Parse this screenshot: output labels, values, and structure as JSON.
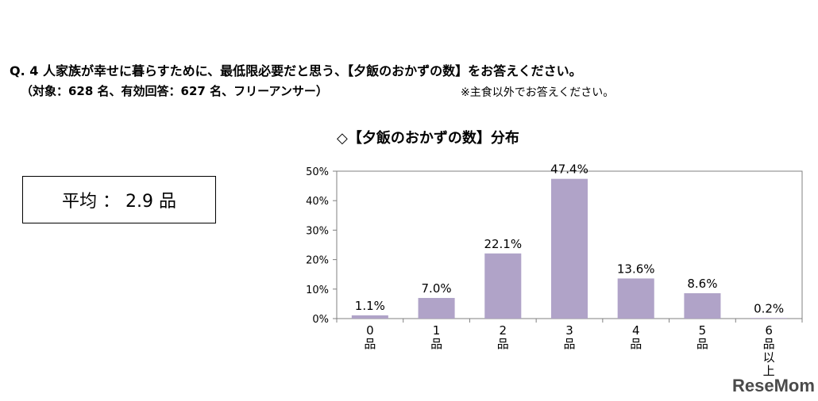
{
  "question": {
    "line1": "Q. 4 人家族が幸せに暮らすために、最低限必要だと思う、【夕飯のおかずの数】をお答えください。",
    "line2": "（対象：628 名、有効回答：627 名、フリーアンサー）",
    "note": "※主食以外でお答えください。"
  },
  "average": {
    "text": "平均 ： 2.9 品"
  },
  "watermark": "ReseMom",
  "colors": {
    "bar": "#b0a3c8",
    "axis": "#808080"
  },
  "chart_data": {
    "type": "bar",
    "title": "◇【夕飯のおかずの数】分布",
    "categories": [
      "0品",
      "1品",
      "2品",
      "3品",
      "4品",
      "5品",
      "6品以上"
    ],
    "values": [
      1.1,
      7.0,
      22.1,
      47.4,
      13.6,
      8.6,
      0.2
    ],
    "value_labels": [
      "1.1%",
      "7.0%",
      "22.1%",
      "47.4%",
      "13.6%",
      "8.6%",
      "0.2%"
    ],
    "yticks": [
      "0%",
      "10%",
      "20%",
      "30%",
      "40%",
      "50%"
    ],
    "ylim": [
      0,
      50
    ],
    "grid": false,
    "legend": false
  }
}
